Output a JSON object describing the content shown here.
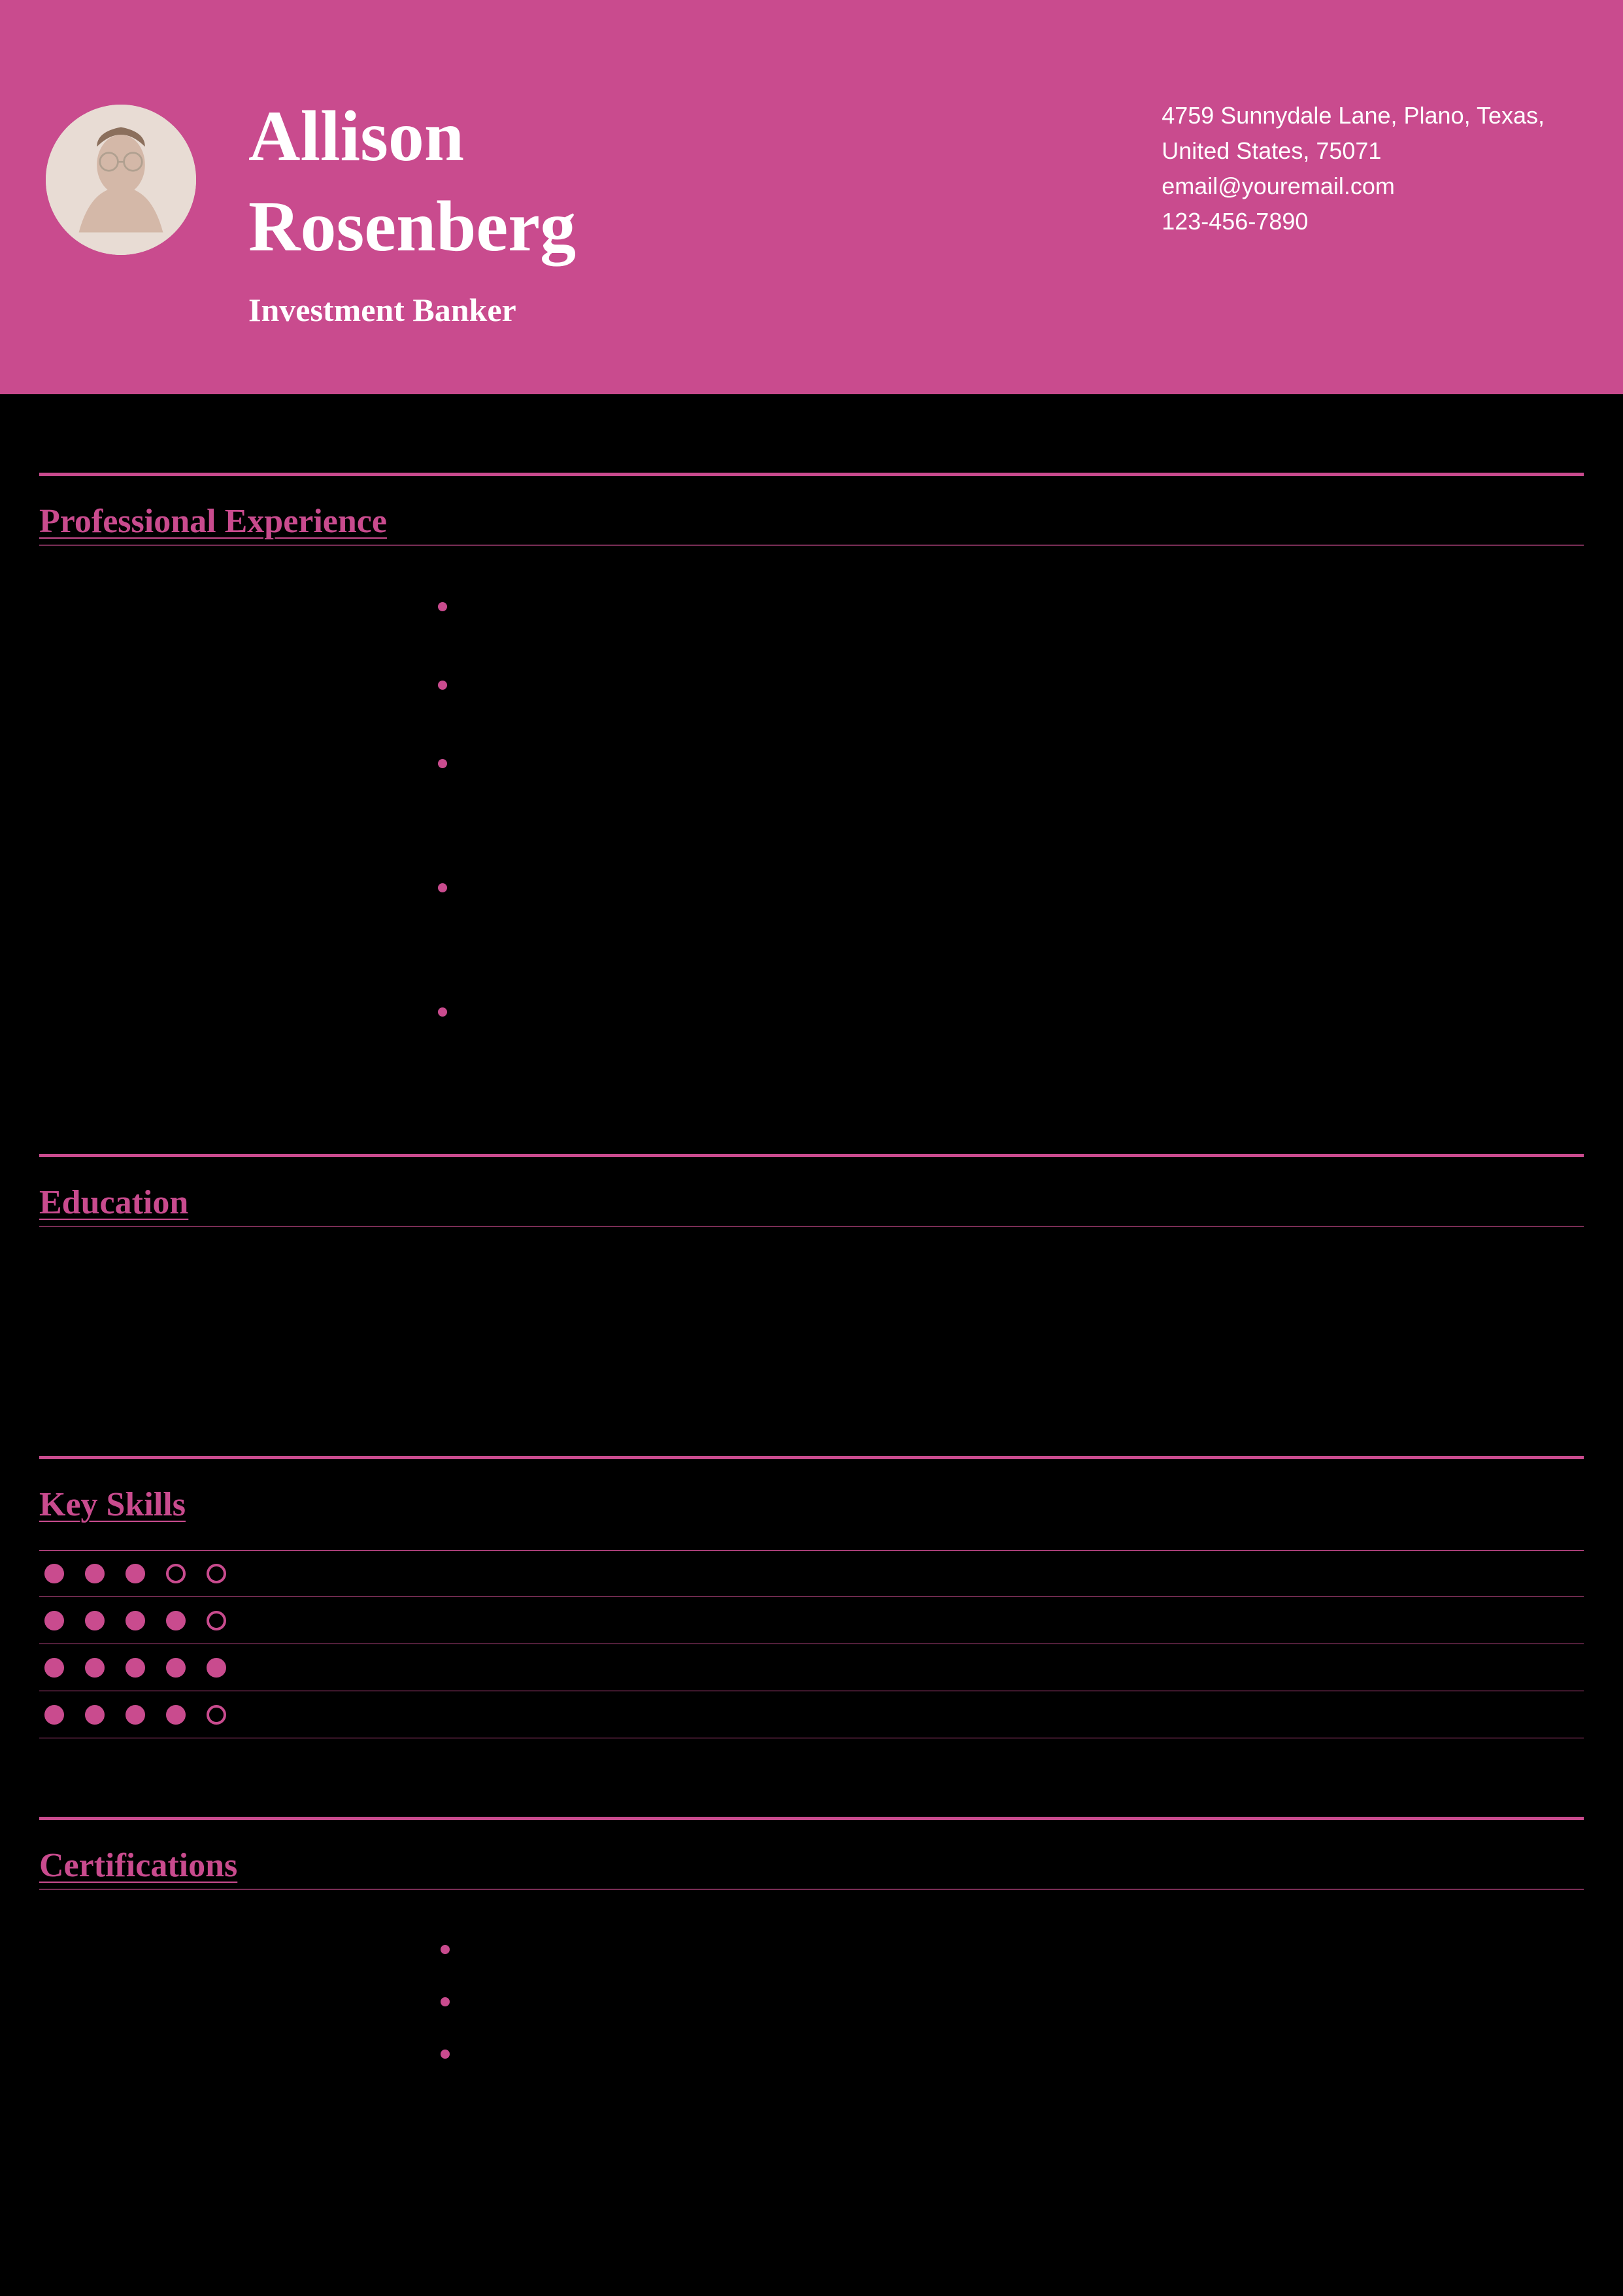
{
  "colors": {
    "accent": "#c94b8e",
    "background": "#000000",
    "header_text": "#ffffff"
  },
  "header": {
    "first_name": "Allison",
    "last_name": "Rosenberg",
    "job_title": "Investment Banker",
    "address_line1": "4759 Sunnydale Lane, Plano, Texas,",
    "address_line2": "United States, 75071",
    "email": "email@youremail.com",
    "phone": "123-456-7890"
  },
  "sections": {
    "experience": {
      "title": "Professional Experience",
      "bullets_count": 5,
      "tall_bullets": [
        2,
        3
      ]
    },
    "education": {
      "title": "Education"
    },
    "skills": {
      "title": "Key Skills",
      "rows": [
        {
          "rating": 3,
          "max": 5
        },
        {
          "rating": 4,
          "max": 5
        },
        {
          "rating": 5,
          "max": 5
        },
        {
          "rating": 4,
          "max": 5
        }
      ]
    },
    "certifications": {
      "title": "Certifications",
      "bullets_count": 3
    }
  }
}
